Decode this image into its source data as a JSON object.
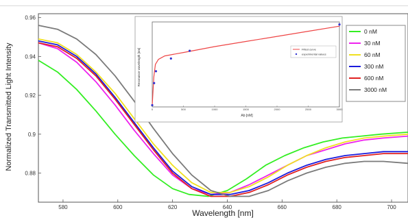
{
  "chart_data": [
    {
      "type": "line",
      "title": "",
      "xlabel": "Wavelength [nm]",
      "ylabel": "Normalized Transmitted Light Intensity",
      "xlim": [
        571,
        706
      ],
      "ylim": [
        0.865,
        0.962
      ],
      "x_ticks": [
        580,
        600,
        620,
        640,
        660,
        680,
        700
      ],
      "x_tick_labels": [
        "580",
        "600",
        "620",
        "640",
        "660",
        "680",
        "700"
      ],
      "y_ticks": [
        0.88,
        0.9,
        0.92,
        0.94,
        0.96
      ],
      "y_tick_labels": [
        "0.88",
        "0.9",
        "0.92",
        "0.94",
        "0.96"
      ],
      "grid": false,
      "legend": "top-right",
      "series": [
        {
          "name": "0 nM",
          "color": "#33ee22",
          "x": [
            571,
            578,
            585,
            592,
            599,
            606,
            613,
            620,
            626,
            633,
            640,
            647,
            654,
            661,
            668,
            675,
            682,
            689,
            696,
            706
          ],
          "y": [
            0.938,
            0.932,
            0.923,
            0.912,
            0.9,
            0.889,
            0.879,
            0.872,
            0.869,
            0.868,
            0.871,
            0.877,
            0.884,
            0.889,
            0.893,
            0.896,
            0.898,
            0.899,
            0.9,
            0.901
          ]
        },
        {
          "name": "30 nM",
          "color": "#ee22ee",
          "x": [
            571,
            578,
            585,
            592,
            599,
            606,
            613,
            620,
            627,
            634,
            641,
            648,
            655,
            662,
            669,
            676,
            683,
            690,
            697,
            706
          ],
          "y": [
            0.947,
            0.944,
            0.937,
            0.927,
            0.915,
            0.902,
            0.89,
            0.879,
            0.872,
            0.869,
            0.87,
            0.874,
            0.879,
            0.884,
            0.889,
            0.892,
            0.895,
            0.897,
            0.898,
            0.899
          ]
        },
        {
          "name": "60 nM",
          "color": "#f0e020",
          "x": [
            571,
            578,
            585,
            592,
            599,
            606,
            613,
            620,
            627,
            634,
            641,
            648,
            655,
            662,
            669,
            676,
            683,
            690,
            697,
            706
          ],
          "y": [
            0.949,
            0.947,
            0.941,
            0.932,
            0.921,
            0.908,
            0.895,
            0.884,
            0.875,
            0.87,
            0.87,
            0.873,
            0.878,
            0.884,
            0.889,
            0.893,
            0.896,
            0.898,
            0.899,
            0.9
          ]
        },
        {
          "name": "300 nM",
          "color": "#1a1adc",
          "x": [
            571,
            578,
            585,
            592,
            599,
            606,
            613,
            620,
            627,
            634,
            641,
            648,
            655,
            662,
            669,
            676,
            683,
            690,
            697,
            706
          ],
          "y": [
            0.948,
            0.946,
            0.94,
            0.931,
            0.919,
            0.906,
            0.893,
            0.881,
            0.873,
            0.869,
            0.869,
            0.871,
            0.875,
            0.88,
            0.884,
            0.887,
            0.889,
            0.89,
            0.891,
            0.891
          ]
        },
        {
          "name": "600 nM",
          "color": "#e02020",
          "x": [
            571,
            578,
            585,
            592,
            599,
            606,
            613,
            620,
            627,
            634,
            641,
            648,
            655,
            662,
            669,
            676,
            683,
            690,
            697,
            706
          ],
          "y": [
            0.947,
            0.945,
            0.939,
            0.93,
            0.918,
            0.905,
            0.892,
            0.88,
            0.872,
            0.868,
            0.868,
            0.87,
            0.874,
            0.879,
            0.883,
            0.886,
            0.888,
            0.889,
            0.89,
            0.89
          ]
        },
        {
          "name": "3000 nM",
          "color": "#7a7a7a",
          "x": [
            571,
            578,
            585,
            592,
            599,
            606,
            613,
            620,
            627,
            634,
            641,
            648,
            655,
            662,
            669,
            676,
            683,
            690,
            697,
            706
          ],
          "y": [
            0.956,
            0.954,
            0.949,
            0.941,
            0.93,
            0.917,
            0.903,
            0.89,
            0.879,
            0.871,
            0.868,
            0.868,
            0.871,
            0.876,
            0.88,
            0.883,
            0.885,
            0.886,
            0.886,
            0.885
          ]
        }
      ]
    },
    {
      "type": "scatter",
      "title": "",
      "xlabel": "Ab [nM]",
      "ylabel": "Resonance wavelength [nm]",
      "xlim": [
        0,
        3000
      ],
      "x_ticks": [
        0,
        500,
        1000,
        1500,
        2000,
        2500,
        3000
      ],
      "x_tick_labels": [
        "0",
        "500",
        "1000",
        "1500",
        "2000",
        "2500",
        "3000"
      ],
      "legend": "top-right",
      "series": [
        {
          "name": "Fitted curve",
          "color": "#ee4444",
          "x": [
            0,
            25,
            50,
            100,
            200,
            500,
            1000,
            1500,
            2000,
            2500,
            3000
          ],
          "y": [
            0.02,
            0.35,
            0.5,
            0.56,
            0.6,
            0.64,
            0.71,
            0.77,
            0.83,
            0.89,
            0.95
          ]
        },
        {
          "name": "experimental values",
          "color": "#3030d0",
          "x": [
            0,
            30,
            60,
            300,
            600,
            3000
          ],
          "y": [
            0.02,
            0.28,
            0.42,
            0.57,
            0.66,
            0.97
          ]
        }
      ]
    }
  ]
}
